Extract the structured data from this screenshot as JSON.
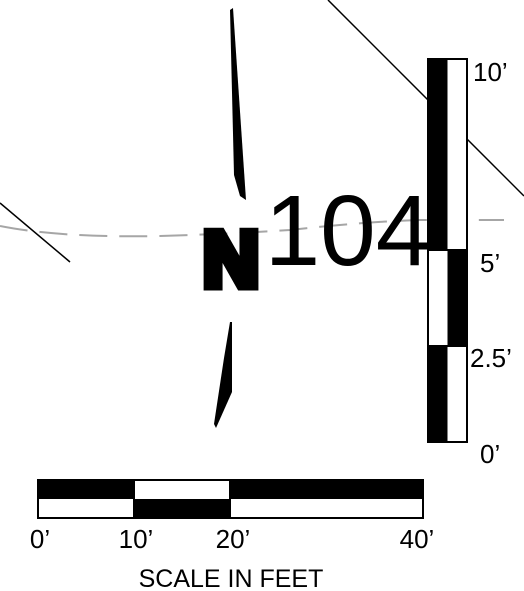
{
  "colors": {
    "ink": "#000000",
    "paper": "#ffffff",
    "alignment_dash": "#a6a6a6"
  },
  "north_arrow": {
    "icon": "north-arrow-icon",
    "letter": "N"
  },
  "plot": {
    "number": "104"
  },
  "vertical_scale": {
    "labels": [
      "10’",
      "5’",
      "2.5’",
      "0’"
    ]
  },
  "horizontal_scale": {
    "labels": [
      "0’",
      "10’",
      "20’",
      "40’"
    ],
    "caption": "SCALE IN FEET"
  }
}
